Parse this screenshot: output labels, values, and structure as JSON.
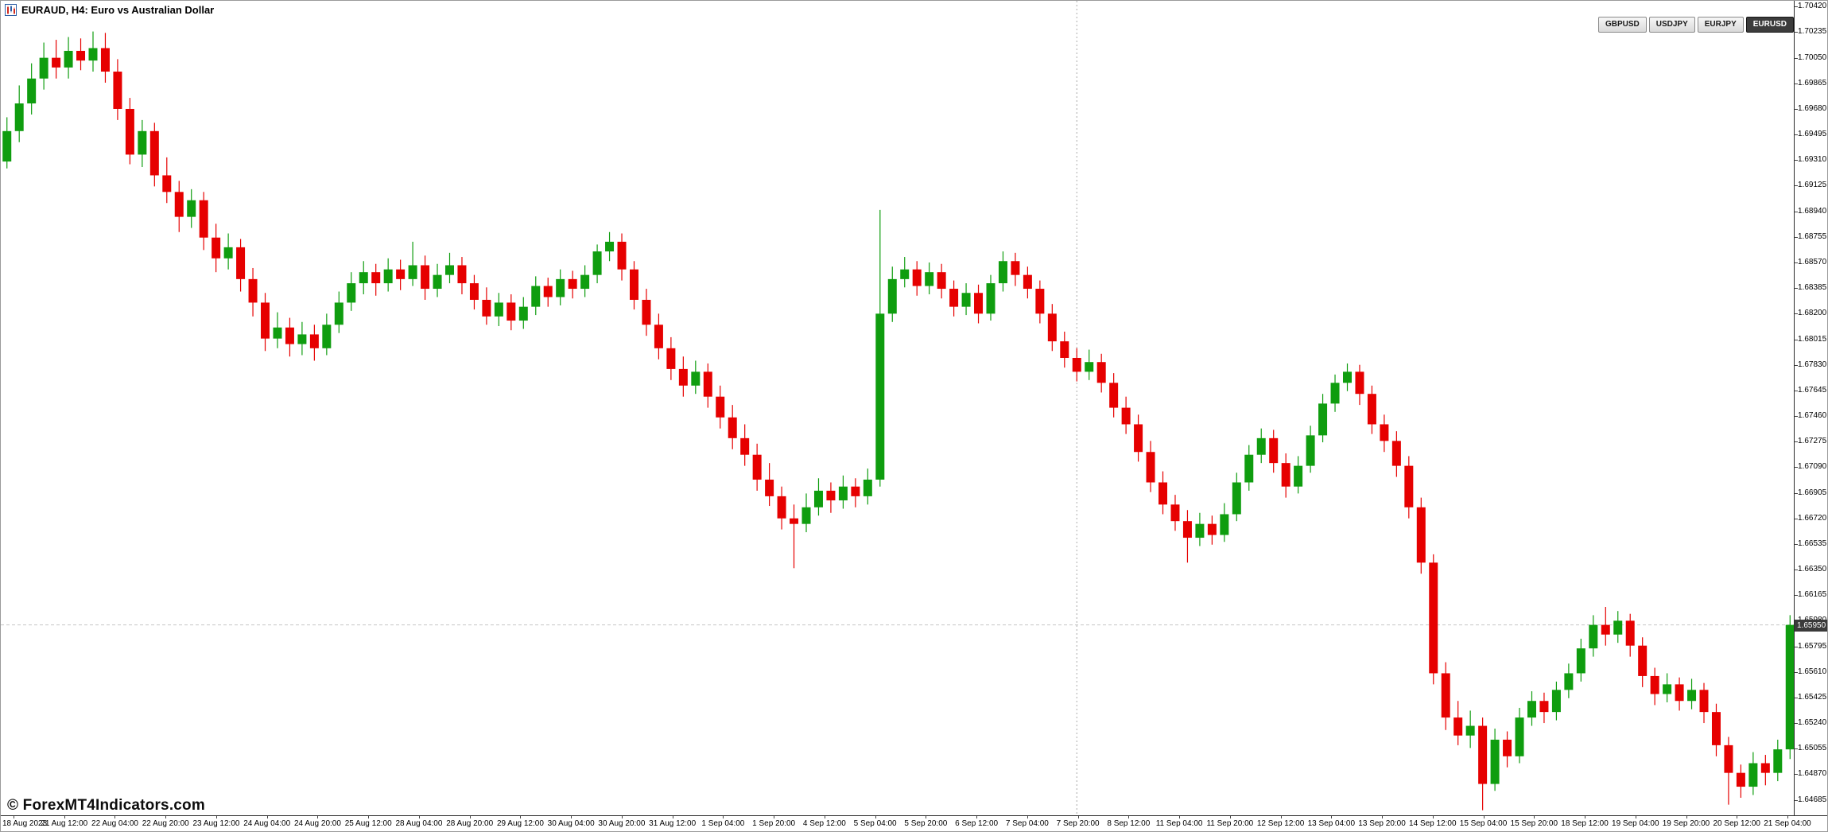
{
  "window": {
    "title": "EURAUD, H4: Euro vs Australian Dollar"
  },
  "symbol_buttons": [
    {
      "label": "GBPUSD",
      "active": false
    },
    {
      "label": "USDJPY",
      "active": false
    },
    {
      "label": "EURJPY",
      "active": false
    },
    {
      "label": "EURUSD",
      "active": true
    }
  ],
  "watermark": "© ForexMT4Indicators.com",
  "current_price": "1.65950",
  "colors": {
    "up": "#0f9d0f",
    "down": "#e60000",
    "axis_text": "#000000",
    "price_tag_bg": "#3a3a3a",
    "price_tag_text": "#ffffff",
    "separator": "#a8a8a8",
    "bid_line": "#c8c8c8",
    "background": "#ffffff"
  },
  "chart_data": {
    "type": "candlestick",
    "symbol": "EURAUD",
    "timeframe": "H4",
    "grid": false,
    "legend_position": "none",
    "price_axis": {
      "min": 1.64556,
      "max": 1.70462,
      "ticks": [
        "1.70420",
        "1.70235",
        "1.70050",
        "1.69865",
        "1.69680",
        "1.69495",
        "1.69310",
        "1.69125",
        "1.68940",
        "1.68755",
        "1.68570",
        "1.68385",
        "1.68200",
        "1.68015",
        "1.67830",
        "1.67645",
        "1.67460",
        "1.67275",
        "1.67090",
        "1.66905",
        "1.66720",
        "1.66535",
        "1.66350",
        "1.66165",
        "1.65980",
        "1.65795",
        "1.65610",
        "1.65425",
        "1.65240",
        "1.65055",
        "1.64870",
        "1.64685"
      ]
    },
    "time_axis": {
      "label_every_candles": 4,
      "labels": [
        "18 Aug 2023",
        "21 Aug 12:00",
        "22 Aug 04:00",
        "22 Aug 20:00",
        "23 Aug 12:00",
        "24 Aug 04:00",
        "24 Aug 20:00",
        "25 Aug 12:00",
        "28 Aug 04:00",
        "28 Aug 20:00",
        "29 Aug 12:00",
        "30 Aug 04:00",
        "30 Aug 20:00",
        "31 Aug 12:00",
        "1 Sep 04:00",
        "1 Sep 20:00",
        "4 Sep 12:00",
        "5 Sep 04:00",
        "5 Sep 20:00",
        "6 Sep 12:00",
        "7 Sep 04:00",
        "7 Sep 20:00",
        "8 Sep 12:00",
        "11 Sep 04:00",
        "11 Sep 20:00",
        "12 Sep 12:00",
        "13 Sep 04:00",
        "13 Sep 20:00",
        "14 Sep 12:00",
        "15 Sep 04:00",
        "15 Sep 20:00",
        "18 Sep 12:00",
        "19 Sep 04:00",
        "19 Sep 20:00",
        "20 Sep 12:00",
        "21 Sep 04:00"
      ]
    },
    "separators": [
      {
        "index": 87.5
      }
    ],
    "candles": [
      [
        1.693,
        1.6962,
        1.6925,
        1.6952
      ],
      [
        1.6952,
        1.6985,
        1.6944,
        1.6972
      ],
      [
        1.6972,
        1.7001,
        1.6964,
        1.699
      ],
      [
        1.699,
        1.7016,
        1.6982,
        1.7005
      ],
      [
        1.7005,
        1.7018,
        1.699,
        1.6998
      ],
      [
        1.6998,
        1.702,
        1.699,
        1.701
      ],
      [
        1.701,
        1.7019,
        1.6996,
        1.7003
      ],
      [
        1.7003,
        1.7024,
        1.6995,
        1.7012
      ],
      [
        1.7012,
        1.7023,
        1.6987,
        1.6995
      ],
      [
        1.6995,
        1.7004,
        1.696,
        1.6968
      ],
      [
        1.6968,
        1.6976,
        1.6928,
        1.6935
      ],
      [
        1.6935,
        1.696,
        1.6926,
        1.6952
      ],
      [
        1.6952,
        1.6958,
        1.6912,
        1.692
      ],
      [
        1.692,
        1.6933,
        1.69,
        1.6908
      ],
      [
        1.6908,
        1.6916,
        1.6879,
        1.689
      ],
      [
        1.689,
        1.691,
        1.6882,
        1.6902
      ],
      [
        1.6902,
        1.6908,
        1.6866,
        1.6875
      ],
      [
        1.6875,
        1.6885,
        1.685,
        1.686
      ],
      [
        1.686,
        1.6878,
        1.6852,
        1.6868
      ],
      [
        1.6868,
        1.6874,
        1.6836,
        1.6845
      ],
      [
        1.6845,
        1.6853,
        1.6818,
        1.6828
      ],
      [
        1.6828,
        1.6835,
        1.6793,
        1.6802
      ],
      [
        1.6802,
        1.6821,
        1.6795,
        1.681
      ],
      [
        1.681,
        1.6817,
        1.6789,
        1.6798
      ],
      [
        1.6798,
        1.6814,
        1.679,
        1.6805
      ],
      [
        1.6805,
        1.6812,
        1.6786,
        1.6795
      ],
      [
        1.6795,
        1.682,
        1.679,
        1.6812
      ],
      [
        1.6812,
        1.6836,
        1.6806,
        1.6828
      ],
      [
        1.6828,
        1.685,
        1.6822,
        1.6842
      ],
      [
        1.6842,
        1.6858,
        1.6834,
        1.685
      ],
      [
        1.685,
        1.6856,
        1.6833,
        1.6842
      ],
      [
        1.6842,
        1.686,
        1.6836,
        1.6852
      ],
      [
        1.6852,
        1.6859,
        1.6837,
        1.6845
      ],
      [
        1.6845,
        1.6872,
        1.684,
        1.6855
      ],
      [
        1.6855,
        1.6862,
        1.683,
        1.6838
      ],
      [
        1.6838,
        1.6856,
        1.6832,
        1.6848
      ],
      [
        1.6848,
        1.6864,
        1.6842,
        1.6855
      ],
      [
        1.6855,
        1.6861,
        1.6834,
        1.6842
      ],
      [
        1.6842,
        1.6848,
        1.6823,
        1.683
      ],
      [
        1.683,
        1.6839,
        1.6812,
        1.6818
      ],
      [
        1.6818,
        1.6835,
        1.6811,
        1.6828
      ],
      [
        1.6828,
        1.6834,
        1.6808,
        1.6815
      ],
      [
        1.6815,
        1.6832,
        1.6809,
        1.6825
      ],
      [
        1.6825,
        1.6847,
        1.6819,
        1.684
      ],
      [
        1.684,
        1.6846,
        1.6825,
        1.6832
      ],
      [
        1.6832,
        1.6852,
        1.6826,
        1.6845
      ],
      [
        1.6845,
        1.6851,
        1.6831,
        1.6838
      ],
      [
        1.6838,
        1.6855,
        1.6832,
        1.6848
      ],
      [
        1.6848,
        1.687,
        1.6842,
        1.6865
      ],
      [
        1.6865,
        1.6879,
        1.6858,
        1.6872
      ],
      [
        1.6872,
        1.6878,
        1.6844,
        1.6852
      ],
      [
        1.6852,
        1.6858,
        1.6823,
        1.683
      ],
      [
        1.683,
        1.6838,
        1.6804,
        1.6812
      ],
      [
        1.6812,
        1.682,
        1.6787,
        1.6795
      ],
      [
        1.6795,
        1.6803,
        1.6772,
        1.678
      ],
      [
        1.678,
        1.6789,
        1.676,
        1.6768
      ],
      [
        1.6768,
        1.6786,
        1.6762,
        1.6778
      ],
      [
        1.6778,
        1.6784,
        1.6752,
        1.676
      ],
      [
        1.676,
        1.6768,
        1.6737,
        1.6745
      ],
      [
        1.6745,
        1.6754,
        1.6722,
        1.673
      ],
      [
        1.673,
        1.674,
        1.671,
        1.6718
      ],
      [
        1.6718,
        1.6726,
        1.6692,
        1.67
      ],
      [
        1.67,
        1.6712,
        1.6681,
        1.6688
      ],
      [
        1.6688,
        1.6695,
        1.6664,
        1.6672
      ],
      [
        1.6672,
        1.6682,
        1.6636,
        1.6668
      ],
      [
        1.6668,
        1.669,
        1.6662,
        1.668
      ],
      [
        1.668,
        1.6701,
        1.6674,
        1.6692
      ],
      [
        1.6692,
        1.6698,
        1.6676,
        1.6685
      ],
      [
        1.6685,
        1.6703,
        1.6679,
        1.6695
      ],
      [
        1.6695,
        1.6701,
        1.668,
        1.6688
      ],
      [
        1.6688,
        1.6708,
        1.6682,
        1.67
      ],
      [
        1.67,
        1.6895,
        1.6695,
        1.682
      ],
      [
        1.682,
        1.6854,
        1.6814,
        1.6845
      ],
      [
        1.6845,
        1.6861,
        1.6839,
        1.6852
      ],
      [
        1.6852,
        1.6858,
        1.6833,
        1.684
      ],
      [
        1.684,
        1.6857,
        1.6834,
        1.685
      ],
      [
        1.685,
        1.6856,
        1.6831,
        1.6838
      ],
      [
        1.6838,
        1.6844,
        1.6818,
        1.6825
      ],
      [
        1.6825,
        1.6842,
        1.6819,
        1.6835
      ],
      [
        1.6835,
        1.6841,
        1.6813,
        1.682
      ],
      [
        1.682,
        1.6848,
        1.6815,
        1.6842
      ],
      [
        1.6842,
        1.6865,
        1.6836,
        1.6858
      ],
      [
        1.6858,
        1.6864,
        1.684,
        1.6848
      ],
      [
        1.6848,
        1.6854,
        1.6831,
        1.6838
      ],
      [
        1.6838,
        1.6844,
        1.6813,
        1.682
      ],
      [
        1.682,
        1.6827,
        1.6793,
        1.68
      ],
      [
        1.68,
        1.6807,
        1.6781,
        1.6788
      ],
      [
        1.6788,
        1.6795,
        1.6771,
        1.6778
      ],
      [
        1.6778,
        1.6794,
        1.6772,
        1.6785
      ],
      [
        1.6785,
        1.6791,
        1.6763,
        1.677
      ],
      [
        1.677,
        1.6777,
        1.6745,
        1.6752
      ],
      [
        1.6752,
        1.676,
        1.6733,
        1.674
      ],
      [
        1.674,
        1.6747,
        1.6713,
        1.672
      ],
      [
        1.672,
        1.6728,
        1.6691,
        1.6698
      ],
      [
        1.6698,
        1.6706,
        1.6675,
        1.6682
      ],
      [
        1.6682,
        1.6689,
        1.6663,
        1.667
      ],
      [
        1.667,
        1.6678,
        1.664,
        1.6658
      ],
      [
        1.6658,
        1.6676,
        1.6652,
        1.6668
      ],
      [
        1.6668,
        1.6674,
        1.6653,
        1.666
      ],
      [
        1.666,
        1.6683,
        1.6655,
        1.6675
      ],
      [
        1.6675,
        1.6705,
        1.667,
        1.6698
      ],
      [
        1.6698,
        1.6725,
        1.6692,
        1.6718
      ],
      [
        1.6718,
        1.6737,
        1.6712,
        1.673
      ],
      [
        1.673,
        1.6736,
        1.6705,
        1.6712
      ],
      [
        1.6712,
        1.6719,
        1.6687,
        1.6695
      ],
      [
        1.6695,
        1.6717,
        1.669,
        1.671
      ],
      [
        1.671,
        1.6739,
        1.6705,
        1.6732
      ],
      [
        1.6732,
        1.6762,
        1.6727,
        1.6755
      ],
      [
        1.6755,
        1.6776,
        1.6749,
        1.677
      ],
      [
        1.677,
        1.6784,
        1.6764,
        1.6778
      ],
      [
        1.6778,
        1.6783,
        1.6754,
        1.6762
      ],
      [
        1.6762,
        1.6768,
        1.6733,
        1.674
      ],
      [
        1.674,
        1.6747,
        1.672,
        1.6728
      ],
      [
        1.6728,
        1.6735,
        1.6702,
        1.671
      ],
      [
        1.671,
        1.6717,
        1.6672,
        1.668
      ],
      [
        1.668,
        1.6687,
        1.6632,
        1.664
      ],
      [
        1.664,
        1.6646,
        1.6552,
        1.656
      ],
      [
        1.656,
        1.6568,
        1.6519,
        1.6528
      ],
      [
        1.6528,
        1.654,
        1.6508,
        1.6515
      ],
      [
        1.6515,
        1.6533,
        1.6506,
        1.6522
      ],
      [
        1.6522,
        1.6528,
        1.6461,
        1.648
      ],
      [
        1.648,
        1.652,
        1.6475,
        1.6512
      ],
      [
        1.6512,
        1.6518,
        1.6492,
        1.65
      ],
      [
        1.65,
        1.6535,
        1.6495,
        1.6528
      ],
      [
        1.6528,
        1.6547,
        1.6522,
        1.654
      ],
      [
        1.654,
        1.6546,
        1.6524,
        1.6532
      ],
      [
        1.6532,
        1.6554,
        1.6526,
        1.6548
      ],
      [
        1.6548,
        1.6567,
        1.6542,
        1.656
      ],
      [
        1.656,
        1.6585,
        1.6554,
        1.6578
      ],
      [
        1.6578,
        1.6602,
        1.6572,
        1.6595
      ],
      [
        1.6595,
        1.6608,
        1.658,
        1.6588
      ],
      [
        1.6588,
        1.6605,
        1.6582,
        1.6598
      ],
      [
        1.6598,
        1.6603,
        1.6572,
        1.658
      ],
      [
        1.658,
        1.6586,
        1.655,
        1.6558
      ],
      [
        1.6558,
        1.6564,
        1.6537,
        1.6545
      ],
      [
        1.6545,
        1.656,
        1.6539,
        1.6552
      ],
      [
        1.6552,
        1.6557,
        1.6533,
        1.654
      ],
      [
        1.654,
        1.6556,
        1.6534,
        1.6548
      ],
      [
        1.6548,
        1.6553,
        1.6524,
        1.6532
      ],
      [
        1.6532,
        1.6538,
        1.65,
        1.6508
      ],
      [
        1.6508,
        1.6514,
        1.6465,
        1.6488
      ],
      [
        1.6488,
        1.6494,
        1.647,
        1.6478
      ],
      [
        1.6478,
        1.6503,
        1.6472,
        1.6495
      ],
      [
        1.6495,
        1.6501,
        1.6479,
        1.6488
      ],
      [
        1.6488,
        1.6512,
        1.6482,
        1.6505
      ],
      [
        1.6505,
        1.6602,
        1.6498,
        1.6595
      ]
    ]
  }
}
